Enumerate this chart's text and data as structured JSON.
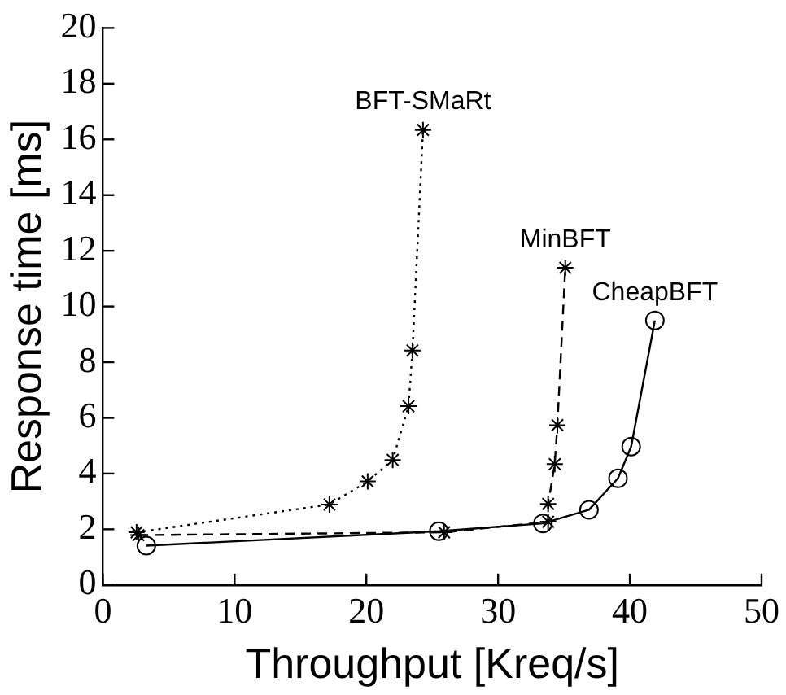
{
  "chart_data": {
    "type": "line",
    "xlabel": "Throughput [Kreq/s]",
    "ylabel": "Response time [ms]",
    "xlim": [
      0,
      50
    ],
    "xticks": [
      0,
      10,
      20,
      30,
      40,
      50
    ],
    "ylim": [
      0,
      20
    ],
    "yticks": [
      0,
      2,
      4,
      6,
      8,
      10,
      12,
      14,
      16,
      18,
      20
    ],
    "grid": false,
    "legend": false,
    "series": [
      {
        "name": "BFT-SMaRt",
        "color": "#000000",
        "marker": "cross",
        "line_style": "dotted",
        "x": [
          2.56,
          17.2,
          20.1,
          22.0,
          23.2,
          23.5,
          24.3
        ],
        "values": [
          1.89,
          2.89,
          3.72,
          4.49,
          6.42,
          8.42,
          16.34
        ]
      },
      {
        "name": "MinBFT",
        "color": "#000000",
        "marker": "cross",
        "line_style": "dashed",
        "x": [
          2.7,
          25.9,
          33.8,
          33.8,
          34.3,
          34.5,
          35.1
        ],
        "values": [
          1.79,
          1.89,
          2.27,
          2.91,
          4.34,
          5.74,
          11.39
        ]
      },
      {
        "name": "CheapBFT",
        "color": "#000000",
        "marker": "circle",
        "line_style": "solid",
        "x": [
          3.3,
          25.5,
          33.4,
          36.9,
          39.1,
          40.1,
          41.9
        ],
        "values": [
          1.41,
          1.93,
          2.21,
          2.7,
          3.83,
          4.97,
          9.5
        ]
      }
    ]
  }
}
